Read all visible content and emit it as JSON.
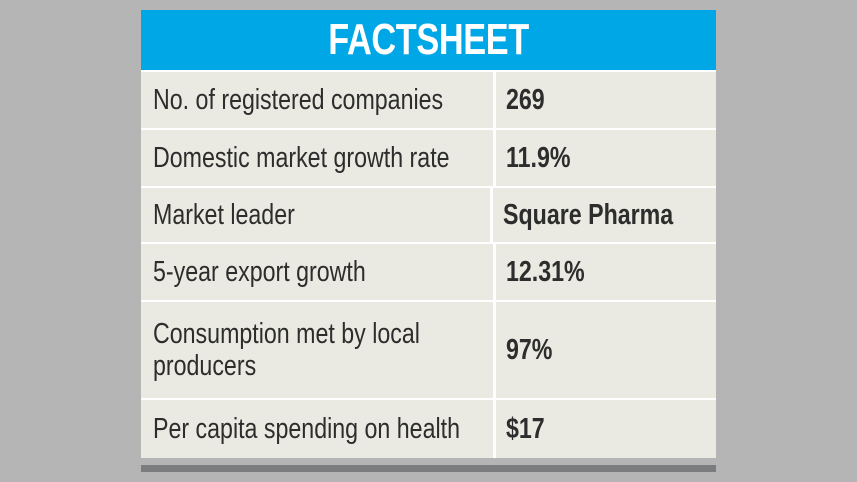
{
  "title": "FACTSHEET",
  "rows": [
    {
      "label": "No. of registered companies",
      "value": "269"
    },
    {
      "label": "Domestic market growth rate",
      "value": "11.9%"
    },
    {
      "label": "Market leader",
      "value": "Square Pharma"
    },
    {
      "label": "5-year export growth",
      "value": "12.31%"
    },
    {
      "label": "Consumption met by local producers",
      "label_line1": "Consumption met by local",
      "label_line2": "producers",
      "value": "97%"
    },
    {
      "label": "Per capita spending on health",
      "value": "$17"
    }
  ],
  "colors": {
    "header": "#00a7e7",
    "cell": "#eaeae2",
    "background": "#b5b5b5",
    "bottom_bar": "#7b7c7e"
  }
}
